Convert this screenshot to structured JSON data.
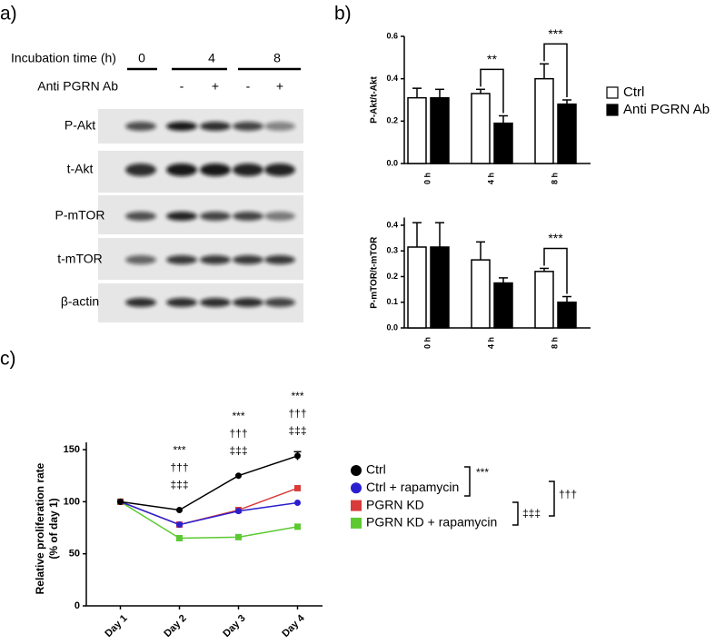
{
  "panel_labels": [
    "a)",
    "b)",
    "c)"
  ],
  "blot": {
    "time_label": "Incubation time (h)",
    "times": [
      "0",
      "4",
      "8"
    ],
    "treatment_label": "Anti PGRN Ab",
    "treatments": [
      "-",
      "+",
      "-",
      "+"
    ],
    "proteins": [
      "P-Akt",
      "t-Akt",
      "P-mTOR",
      "t-mTOR",
      "β-actin"
    ]
  },
  "chart_data": [
    {
      "type": "bar",
      "y_label": "P-Akt/t-Akt",
      "categories": [
        "0 h",
        "4 h",
        "8 h"
      ],
      "series": [
        {
          "name": "Ctrl",
          "color": "#ffffff",
          "values": [
            0.31,
            0.33,
            0.4
          ],
          "errors": [
            0.045,
            0.02,
            0.07
          ]
        },
        {
          "name": "Anti PGRN Ab",
          "color": "#000000",
          "values": [
            0.31,
            0.19,
            0.28
          ],
          "errors": [
            0.04,
            0.035,
            0.02
          ]
        }
      ],
      "ylim": [
        0,
        0.6
      ],
      "yticks": [
        {
          "value": 0,
          "label": "0.0"
        },
        0.2,
        0.4,
        0.6
      ],
      "annotations": [
        null,
        "**",
        "***"
      ],
      "legend": "right"
    },
    {
      "type": "bar",
      "y_label": "P-mTOR/t-mTOR",
      "categories": [
        "0 h",
        "4 h",
        "8 h"
      ],
      "series": [
        {
          "color": "#ffffff",
          "values": [
            0.315,
            0.265,
            0.22
          ],
          "errors": [
            0.095,
            0.07,
            0.012
          ]
        },
        {
          "color": "#000000",
          "values": [
            0.315,
            0.175,
            0.1
          ],
          "errors": [
            0.095,
            0.02,
            0.022
          ]
        }
      ],
      "ylim": [
        0,
        0.43
      ],
      "yticks": [
        {
          "value": 0,
          "label": "0.0"
        },
        0.1,
        0.2,
        0.3,
        0.4
      ],
      "annotations": [
        null,
        null,
        "***"
      ]
    },
    {
      "type": "line",
      "y_label": [
        "Relative proliferation rate",
        "(% of day 1)"
      ],
      "categories": [
        "Day 1",
        "Day 2",
        "Day 3",
        "Day 4"
      ],
      "series": [
        {
          "name": "Ctrl",
          "color": "#000000",
          "marker": "circle",
          "values": [
            100,
            92,
            125,
            144
          ],
          "errors": [
            null,
            null,
            null,
            4
          ]
        },
        {
          "name": "Ctrl + rapamycin",
          "color": "#2a1fd0",
          "marker": "circle",
          "values": [
            100,
            78,
            91,
            99
          ]
        },
        {
          "name": "PGRN KD",
          "color": "#d93a3a",
          "marker": "square",
          "values": [
            100,
            78,
            92,
            113
          ]
        },
        {
          "name": "PGRN KD + rapamycin",
          "color": "#5cc932",
          "marker": "square",
          "values": [
            100,
            65,
            66,
            76
          ]
        }
      ],
      "ylim": [
        0,
        157
      ],
      "yticks": [
        0,
        50,
        100,
        150
      ],
      "annotations": [
        null,
        [
          "***",
          "†††",
          "‡‡‡"
        ],
        [
          "***",
          "†††",
          "‡‡‡"
        ],
        [
          "***",
          "†††",
          "‡‡‡"
        ]
      ],
      "brackets": [
        "***",
        "‡‡‡",
        "†††"
      ],
      "legend": "right"
    }
  ]
}
